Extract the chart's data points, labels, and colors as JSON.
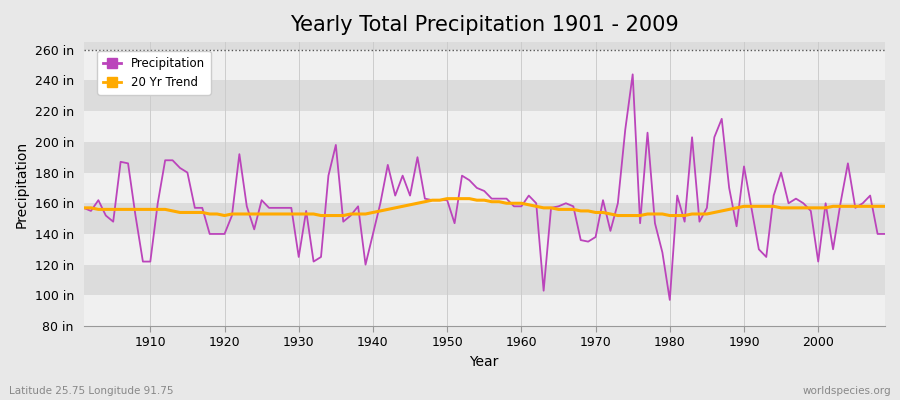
{
  "title": "Yearly Total Precipitation 1901 - 2009",
  "ylabel": "Precipitation",
  "xlabel": "Year",
  "subtitle_left": "Latitude 25.75 Longitude 91.75",
  "subtitle_right": "worldspecies.org",
  "ylim": [
    80,
    265
  ],
  "yticks": [
    80,
    100,
    120,
    140,
    160,
    180,
    200,
    220,
    240,
    260
  ],
  "ytick_labels": [
    "80 in",
    "100 in",
    "120 in",
    "140 in",
    "160 in",
    "180 in",
    "200 in",
    "220 in",
    "240 in",
    "260 in"
  ],
  "xticks": [
    1910,
    1920,
    1930,
    1940,
    1950,
    1960,
    1970,
    1980,
    1990,
    2000
  ],
  "years": [
    1901,
    1902,
    1903,
    1904,
    1905,
    1906,
    1907,
    1908,
    1909,
    1910,
    1911,
    1912,
    1913,
    1914,
    1915,
    1916,
    1917,
    1918,
    1919,
    1920,
    1921,
    1922,
    1923,
    1924,
    1925,
    1926,
    1927,
    1928,
    1929,
    1930,
    1931,
    1932,
    1933,
    1934,
    1935,
    1936,
    1937,
    1938,
    1939,
    1940,
    1941,
    1942,
    1943,
    1944,
    1945,
    1946,
    1947,
    1948,
    1949,
    1950,
    1951,
    1952,
    1953,
    1954,
    1955,
    1956,
    1957,
    1958,
    1959,
    1960,
    1961,
    1962,
    1963,
    1964,
    1965,
    1966,
    1967,
    1968,
    1969,
    1970,
    1971,
    1972,
    1973,
    1974,
    1975,
    1976,
    1977,
    1978,
    1979,
    1980,
    1981,
    1982,
    1983,
    1984,
    1985,
    1986,
    1987,
    1988,
    1989,
    1990,
    1991,
    1992,
    1993,
    1994,
    1995,
    1996,
    1997,
    1998,
    1999,
    2000,
    2001,
    2002,
    2003,
    2004,
    2005,
    2006,
    2007,
    2008,
    2009
  ],
  "precip": [
    157,
    155,
    162,
    152,
    148,
    187,
    186,
    152,
    122,
    122,
    160,
    188,
    188,
    183,
    180,
    157,
    157,
    140,
    140,
    140,
    152,
    192,
    158,
    143,
    162,
    157,
    157,
    157,
    157,
    125,
    155,
    122,
    125,
    178,
    198,
    148,
    152,
    158,
    120,
    140,
    160,
    185,
    165,
    178,
    165,
    190,
    163,
    162,
    162,
    162,
    147,
    178,
    175,
    170,
    168,
    163,
    163,
    163,
    158,
    158,
    165,
    160,
    103,
    157,
    158,
    160,
    158,
    136,
    135,
    138,
    162,
    142,
    160,
    208,
    244,
    147,
    206,
    147,
    128,
    97,
    165,
    148,
    203,
    148,
    157,
    203,
    215,
    170,
    145,
    184,
    157,
    130,
    125,
    165,
    180,
    160,
    163,
    160,
    155,
    122,
    160,
    130,
    160,
    186,
    157,
    160,
    165,
    140,
    140
  ],
  "trend": [
    157,
    157,
    156,
    156,
    156,
    156,
    156,
    156,
    156,
    156,
    156,
    156,
    155,
    154,
    154,
    154,
    154,
    153,
    153,
    152,
    153,
    153,
    153,
    153,
    153,
    153,
    153,
    153,
    153,
    153,
    153,
    153,
    152,
    152,
    152,
    152,
    153,
    153,
    153,
    154,
    155,
    156,
    157,
    158,
    159,
    160,
    161,
    162,
    162,
    163,
    163,
    163,
    163,
    162,
    162,
    161,
    161,
    160,
    160,
    160,
    159,
    158,
    157,
    157,
    156,
    156,
    156,
    155,
    155,
    154,
    154,
    153,
    152,
    152,
    152,
    152,
    153,
    153,
    153,
    152,
    152,
    152,
    153,
    153,
    153,
    154,
    155,
    156,
    157,
    158,
    158,
    158,
    158,
    158,
    157,
    157,
    157,
    157,
    157,
    157,
    157,
    158,
    158,
    158,
    158,
    158,
    158,
    158,
    158
  ],
  "precip_color": "#bb44bb",
  "trend_color": "#ffaa00",
  "bg_color": "#e8e8e8",
  "band_color_light": "#f0f0f0",
  "band_color_dark": "#dcdcdc",
  "dotted_line_y": 260,
  "title_fontsize": 15,
  "axis_label_fontsize": 10,
  "tick_fontsize": 9,
  "xlim_left": 1901,
  "xlim_right": 2009
}
